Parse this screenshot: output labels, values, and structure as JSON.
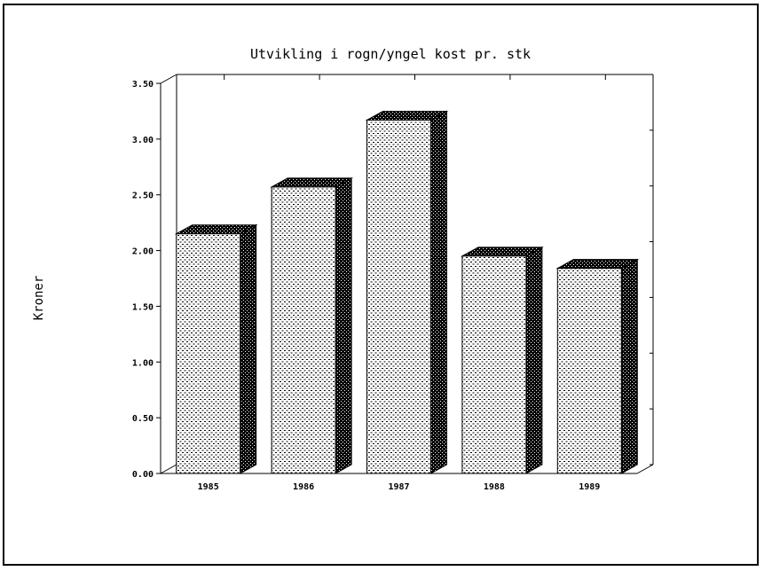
{
  "chart_data": {
    "type": "bar",
    "title": "Utvikling i rogn/yngel kost pr. stk",
    "xlabel": "",
    "ylabel": "Kroner",
    "categories": [
      "1985",
      "1986",
      "1987",
      "1988",
      "1989"
    ],
    "values": [
      2.15,
      2.57,
      3.17,
      1.95,
      1.84
    ],
    "ylim": [
      0,
      3.5
    ],
    "yticks": [
      "0.00",
      "0.50",
      "1.00",
      "1.50",
      "2.00",
      "2.50",
      "3.00",
      "3.50"
    ],
    "style": "3d",
    "grid": false,
    "legend": "none"
  },
  "colors": {
    "bar_face_dots": "#000000",
    "bar_dark": "#000000",
    "background": "#ffffff"
  }
}
